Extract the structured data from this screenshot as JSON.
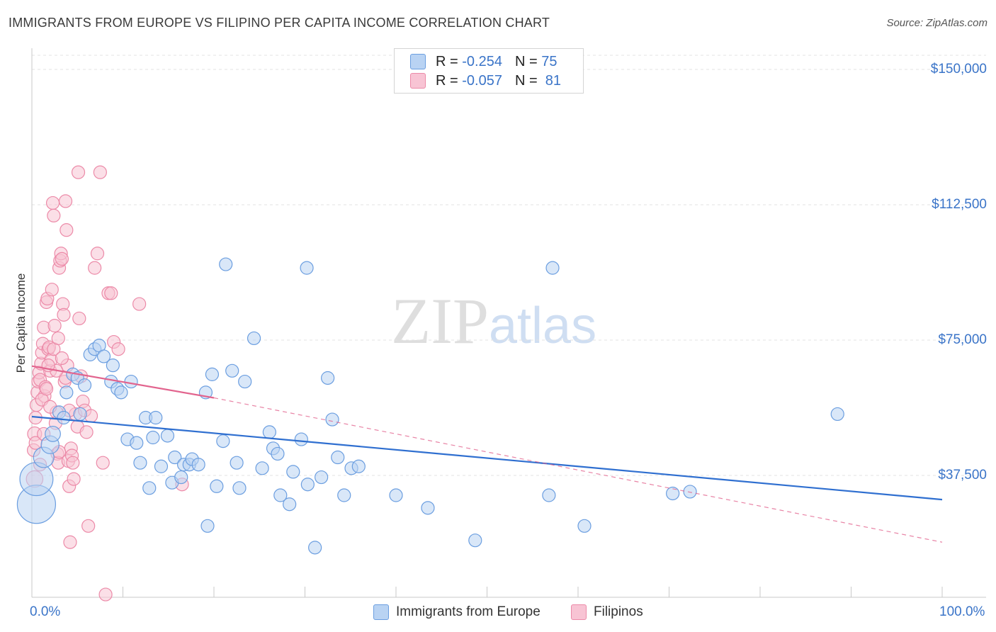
{
  "title": "IMMIGRANTS FROM EUROPE VS FILIPINO PER CAPITA INCOME CORRELATION CHART",
  "source": "Source: ZipAtlas.com",
  "watermark": {
    "zip": "ZIP",
    "atlas": "atlas"
  },
  "legend_top": [
    {
      "r_label": "R =",
      "r_value": "-0.254",
      "n_label": "N =",
      "n_value": "75"
    },
    {
      "r_label": "R =",
      "r_value": "-0.057",
      "n_label": "N =",
      "n_value": "81"
    }
  ],
  "colors": {
    "blue_fill": "#b9d3f3",
    "blue_stroke": "#6b9ee0",
    "blue_line": "#2f6fd0",
    "pink_fill": "#f8c4d4",
    "pink_stroke": "#ec8aa8",
    "pink_line": "#e2648e",
    "tick_text": "#3a74c8",
    "grid": "#e3e3e3"
  },
  "chart_data": {
    "type": "scatter",
    "title": "IMMIGRANTS FROM EUROPE VS FILIPINO PER CAPITA INCOME CORRELATION CHART",
    "xlabel": "",
    "ylabel": "Per Capita Income",
    "xlim": [
      0,
      100
    ],
    "ylim": [
      0,
      155000
    ],
    "x_tick_labels": [
      "0.0%",
      "100.0%"
    ],
    "y_ticks": [
      {
        "value": 150000,
        "label": "$150,000"
      },
      {
        "value": 112500,
        "label": "$112,500"
      },
      {
        "value": 75000,
        "label": "$75,000"
      },
      {
        "value": 37500,
        "label": "$37,500"
      }
    ],
    "grid": true,
    "legend_position": "bottom",
    "series": [
      {
        "name": "Immigrants from Europe",
        "color": "#6b9ee0",
        "r": -0.254,
        "n": 75,
        "trend": {
          "x": [
            0,
            100
          ],
          "y": [
            53800,
            30800
          ],
          "style": "solid"
        },
        "points": [
          {
            "x": 0.5,
            "y": 29500,
            "s": 3
          },
          {
            "x": 0.5,
            "y": 36500,
            "s": 2.6
          },
          {
            "x": 1.3,
            "y": 42500,
            "s": 1.6
          },
          {
            "x": 2.0,
            "y": 46000,
            "s": 1.4
          },
          {
            "x": 2.3,
            "y": 49000,
            "s": 1.2
          },
          {
            "x": 3.0,
            "y": 55000,
            "s": 1
          },
          {
            "x": 3.5,
            "y": 53500,
            "s": 1
          },
          {
            "x": 3.8,
            "y": 60500,
            "s": 1
          },
          {
            "x": 4.5,
            "y": 65500,
            "s": 1
          },
          {
            "x": 5.0,
            "y": 64500,
            "s": 1
          },
          {
            "x": 5.3,
            "y": 54500,
            "s": 1
          },
          {
            "x": 5.8,
            "y": 62500,
            "s": 1
          },
          {
            "x": 6.4,
            "y": 71000,
            "s": 1
          },
          {
            "x": 6.9,
            "y": 72500,
            "s": 1
          },
          {
            "x": 7.4,
            "y": 73500,
            "s": 1
          },
          {
            "x": 7.9,
            "y": 70500,
            "s": 1
          },
          {
            "x": 8.7,
            "y": 63500,
            "s": 1
          },
          {
            "x": 8.9,
            "y": 68000,
            "s": 1
          },
          {
            "x": 9.4,
            "y": 61500,
            "s": 1
          },
          {
            "x": 9.8,
            "y": 60500,
            "s": 1
          },
          {
            "x": 10.5,
            "y": 47500,
            "s": 1
          },
          {
            "x": 10.9,
            "y": 63500,
            "s": 1
          },
          {
            "x": 11.5,
            "y": 46500,
            "s": 1
          },
          {
            "x": 11.9,
            "y": 41000,
            "s": 1
          },
          {
            "x": 12.5,
            "y": 53500,
            "s": 1
          },
          {
            "x": 12.9,
            "y": 34000,
            "s": 1
          },
          {
            "x": 13.3,
            "y": 48000,
            "s": 1
          },
          {
            "x": 13.6,
            "y": 53500,
            "s": 1
          },
          {
            "x": 14.2,
            "y": 40000,
            "s": 1
          },
          {
            "x": 14.9,
            "y": 48500,
            "s": 1
          },
          {
            "x": 15.4,
            "y": 35500,
            "s": 1
          },
          {
            "x": 15.7,
            "y": 42500,
            "s": 1
          },
          {
            "x": 16.4,
            "y": 37000,
            "s": 1
          },
          {
            "x": 16.7,
            "y": 40500,
            "s": 1
          },
          {
            "x": 17.3,
            "y": 40500,
            "s": 1
          },
          {
            "x": 17.6,
            "y": 42000,
            "s": 1
          },
          {
            "x": 18.3,
            "y": 40500,
            "s": 1
          },
          {
            "x": 19.1,
            "y": 60500,
            "s": 1
          },
          {
            "x": 19.3,
            "y": 23500,
            "s": 1
          },
          {
            "x": 19.8,
            "y": 65500,
            "s": 1
          },
          {
            "x": 20.3,
            "y": 34500,
            "s": 1
          },
          {
            "x": 21.0,
            "y": 47000,
            "s": 1
          },
          {
            "x": 22.0,
            "y": 66500,
            "s": 1
          },
          {
            "x": 22.5,
            "y": 41000,
            "s": 1
          },
          {
            "x": 22.8,
            "y": 34000,
            "s": 1
          },
          {
            "x": 23.4,
            "y": 63500,
            "s": 1
          },
          {
            "x": 24.4,
            "y": 75500,
            "s": 1
          },
          {
            "x": 25.3,
            "y": 39500,
            "s": 1
          },
          {
            "x": 26.1,
            "y": 49500,
            "s": 1
          },
          {
            "x": 26.5,
            "y": 45000,
            "s": 1
          },
          {
            "x": 27.0,
            "y": 43500,
            "s": 1
          },
          {
            "x": 27.3,
            "y": 32000,
            "s": 1
          },
          {
            "x": 28.3,
            "y": 29500,
            "s": 1
          },
          {
            "x": 28.7,
            "y": 38500,
            "s": 1
          },
          {
            "x": 29.6,
            "y": 47500,
            "s": 1
          },
          {
            "x": 30.3,
            "y": 35000,
            "s": 1
          },
          {
            "x": 31.1,
            "y": 17500,
            "s": 1
          },
          {
            "x": 31.8,
            "y": 37000,
            "s": 1
          },
          {
            "x": 32.5,
            "y": 64500,
            "s": 1
          },
          {
            "x": 33.0,
            "y": 53000,
            "s": 1
          },
          {
            "x": 33.6,
            "y": 42500,
            "s": 1
          },
          {
            "x": 34.3,
            "y": 32000,
            "s": 1
          },
          {
            "x": 35.1,
            "y": 39500,
            "s": 1
          },
          {
            "x": 35.9,
            "y": 40000,
            "s": 1
          },
          {
            "x": 40.0,
            "y": 32000,
            "s": 1
          },
          {
            "x": 43.5,
            "y": 28500,
            "s": 1
          },
          {
            "x": 48.7,
            "y": 19500,
            "s": 1
          },
          {
            "x": 56.8,
            "y": 32000,
            "s": 1
          },
          {
            "x": 60.7,
            "y": 23500,
            "s": 1
          },
          {
            "x": 70.4,
            "y": 32500,
            "s": 1
          },
          {
            "x": 72.3,
            "y": 33000,
            "s": 1
          },
          {
            "x": 88.5,
            "y": 54500,
            "s": 1
          },
          {
            "x": 21.3,
            "y": 96000,
            "s": 1
          },
          {
            "x": 30.2,
            "y": 95000,
            "s": 1
          },
          {
            "x": 57.2,
            "y": 95000,
            "s": 1
          }
        ]
      },
      {
        "name": "Filipinos",
        "color": "#ec8aa8",
        "r": -0.057,
        "n": 81,
        "trend": {
          "x": [
            0,
            20
          ],
          "y": [
            67800,
            59000
          ],
          "style": "solid",
          "extension": {
            "x": [
              20,
              100
            ],
            "y": [
              59000,
              19000
            ],
            "style": "dashed"
          }
        },
        "points": [
          {
            "x": 0.3,
            "y": 36500,
            "s": 1.3
          },
          {
            "x": 0.3,
            "y": 49000,
            "s": 1.1
          },
          {
            "x": 0.4,
            "y": 53500,
            "s": 1
          },
          {
            "x": 0.5,
            "y": 57000,
            "s": 1
          },
          {
            "x": 0.6,
            "y": 60500,
            "s": 1
          },
          {
            "x": 0.7,
            "y": 63500,
            "s": 1
          },
          {
            "x": 0.8,
            "y": 66000,
            "s": 1
          },
          {
            "x": 0.9,
            "y": 64000,
            "s": 1
          },
          {
            "x": 1.0,
            "y": 68500,
            "s": 1
          },
          {
            "x": 1.1,
            "y": 71500,
            "s": 1
          },
          {
            "x": 1.2,
            "y": 74000,
            "s": 1
          },
          {
            "x": 1.3,
            "y": 78500,
            "s": 1
          },
          {
            "x": 1.4,
            "y": 59500,
            "s": 1
          },
          {
            "x": 1.5,
            "y": 62000,
            "s": 1
          },
          {
            "x": 1.6,
            "y": 85500,
            "s": 1
          },
          {
            "x": 1.7,
            "y": 86500,
            "s": 1
          },
          {
            "x": 1.8,
            "y": 72500,
            "s": 1
          },
          {
            "x": 1.9,
            "y": 73000,
            "s": 1
          },
          {
            "x": 2.0,
            "y": 66500,
            "s": 1
          },
          {
            "x": 2.1,
            "y": 69500,
            "s": 1
          },
          {
            "x": 2.2,
            "y": 89000,
            "s": 1
          },
          {
            "x": 2.3,
            "y": 113000,
            "s": 1
          },
          {
            "x": 2.4,
            "y": 109500,
            "s": 1
          },
          {
            "x": 2.5,
            "y": 79000,
            "s": 1
          },
          {
            "x": 2.6,
            "y": 52000,
            "s": 1
          },
          {
            "x": 2.7,
            "y": 55000,
            "s": 1
          },
          {
            "x": 2.8,
            "y": 43500,
            "s": 1
          },
          {
            "x": 2.9,
            "y": 41000,
            "s": 1
          },
          {
            "x": 3.0,
            "y": 95000,
            "s": 1
          },
          {
            "x": 3.1,
            "y": 97000,
            "s": 1
          },
          {
            "x": 3.2,
            "y": 99000,
            "s": 1
          },
          {
            "x": 3.3,
            "y": 97500,
            "s": 1
          },
          {
            "x": 3.4,
            "y": 85000,
            "s": 1
          },
          {
            "x": 3.5,
            "y": 82000,
            "s": 1
          },
          {
            "x": 3.6,
            "y": 63500,
            "s": 1
          },
          {
            "x": 3.7,
            "y": 113500,
            "s": 1
          },
          {
            "x": 3.8,
            "y": 105500,
            "s": 1
          },
          {
            "x": 3.9,
            "y": 68000,
            "s": 1
          },
          {
            "x": 4.0,
            "y": 41500,
            "s": 1
          },
          {
            "x": 4.1,
            "y": 34500,
            "s": 1
          },
          {
            "x": 4.2,
            "y": 19000,
            "s": 1
          },
          {
            "x": 4.3,
            "y": 45000,
            "s": 1
          },
          {
            "x": 4.4,
            "y": 43000,
            "s": 1
          },
          {
            "x": 4.5,
            "y": 41000,
            "s": 1
          },
          {
            "x": 4.6,
            "y": 36500,
            "s": 1
          },
          {
            "x": 4.8,
            "y": 54500,
            "s": 1
          },
          {
            "x": 5.0,
            "y": 51000,
            "s": 1
          },
          {
            "x": 5.2,
            "y": 81000,
            "s": 1
          },
          {
            "x": 5.4,
            "y": 65000,
            "s": 1
          },
          {
            "x": 5.6,
            "y": 58000,
            "s": 1
          },
          {
            "x": 5.8,
            "y": 55500,
            "s": 1
          },
          {
            "x": 6.0,
            "y": 49500,
            "s": 1
          },
          {
            "x": 6.2,
            "y": 23500,
            "s": 1
          },
          {
            "x": 6.5,
            "y": 54000,
            "s": 1
          },
          {
            "x": 6.9,
            "y": 95000,
            "s": 1
          },
          {
            "x": 7.2,
            "y": 99000,
            "s": 1
          },
          {
            "x": 7.5,
            "y": 121500,
            "s": 1
          },
          {
            "x": 7.8,
            "y": 41000,
            "s": 1
          },
          {
            "x": 8.1,
            "y": 4500,
            "s": 1
          },
          {
            "x": 8.4,
            "y": 88000,
            "s": 1
          },
          {
            "x": 8.7,
            "y": 88000,
            "s": 1
          },
          {
            "x": 9.0,
            "y": 74500,
            "s": 1
          },
          {
            "x": 9.5,
            "y": 72500,
            "s": 1
          },
          {
            "x": 0.2,
            "y": 44500,
            "s": 1
          },
          {
            "x": 0.4,
            "y": 46500,
            "s": 1
          },
          {
            "x": 1.1,
            "y": 58500,
            "s": 1
          },
          {
            "x": 1.6,
            "y": 61500,
            "s": 1
          },
          {
            "x": 2.0,
            "y": 56500,
            "s": 1
          },
          {
            "x": 2.4,
            "y": 72500,
            "s": 1
          },
          {
            "x": 2.9,
            "y": 75500,
            "s": 1
          },
          {
            "x": 3.3,
            "y": 70000,
            "s": 1
          },
          {
            "x": 3.7,
            "y": 64500,
            "s": 1
          },
          {
            "x": 5.1,
            "y": 121500,
            "s": 1
          },
          {
            "x": 11.8,
            "y": 85000,
            "s": 1
          },
          {
            "x": 16.5,
            "y": 35000,
            "s": 1
          },
          {
            "x": 1.3,
            "y": 49000,
            "s": 1
          },
          {
            "x": 2.7,
            "y": 66500,
            "s": 1
          },
          {
            "x": 4.1,
            "y": 55500,
            "s": 1
          },
          {
            "x": 0.9,
            "y": 40500,
            "s": 1
          },
          {
            "x": 1.8,
            "y": 68000,
            "s": 1
          },
          {
            "x": 3.0,
            "y": 44000,
            "s": 1
          }
        ]
      }
    ]
  }
}
